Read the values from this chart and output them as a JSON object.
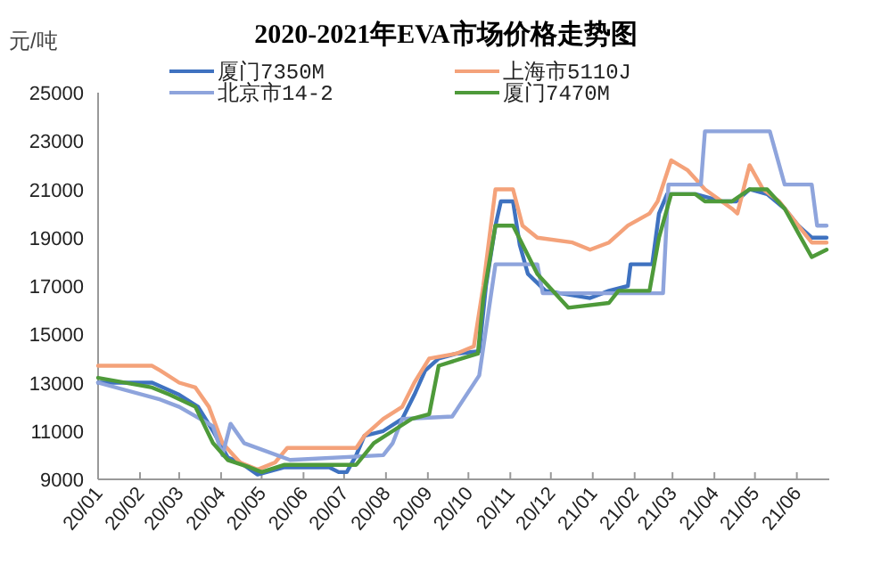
{
  "chart_data": {
    "type": "line",
    "title": "2020-2021年EVA市场价格走势图",
    "ylabel": "元/吨",
    "legend": "top",
    "grid": false,
    "line_style": "solid",
    "ylim": [
      9000,
      25000
    ],
    "yticks": [
      9000,
      11000,
      13000,
      15000,
      17000,
      19000,
      21000,
      23000,
      25000
    ],
    "xlim": [
      "2020-01-01",
      "2021-06-25"
    ],
    "xticks": [
      {
        "value": "2020-01",
        "label": "20/01"
      },
      {
        "value": "2020-02",
        "label": "20/02"
      },
      {
        "value": "2020-03",
        "label": "20/03"
      },
      {
        "value": "2020-04",
        "label": "20/04"
      },
      {
        "value": "2020-05",
        "label": "20/05"
      },
      {
        "value": "2020-06",
        "label": "20/06"
      },
      {
        "value": "2020-07",
        "label": "20/07"
      },
      {
        "value": "2020-08",
        "label": "20/08"
      },
      {
        "value": "2020-09",
        "label": "20/09"
      },
      {
        "value": "2020-10",
        "label": "20/10"
      },
      {
        "value": "2020-11",
        "label": "20/11"
      },
      {
        "value": "2020-12",
        "label": "20/12"
      },
      {
        "value": "2021-01",
        "label": "21/01"
      },
      {
        "value": "2021-02",
        "label": "21/02"
      },
      {
        "value": "2021-03",
        "label": "21/03"
      },
      {
        "value": "2021-04",
        "label": "21/04"
      },
      {
        "value": "2021-05",
        "label": "21/05"
      },
      {
        "value": "2021-06",
        "label": "21/06"
      }
    ],
    "series": [
      {
        "name": "厦门7350M",
        "color": "#3f72c0",
        "x": [
          "2020-01-01",
          "2020-02-10",
          "2020-03-01",
          "2020-03-15",
          "2020-03-26",
          "2020-04-06",
          "2020-04-15",
          "2020-04-28",
          "2020-05-18",
          "2020-06-20",
          "2020-06-27",
          "2020-07-03",
          "2020-07-10",
          "2020-07-16",
          "2020-07-30",
          "2020-08-13",
          "2020-08-22",
          "2020-08-30",
          "2020-09-09",
          "2020-09-22",
          "2020-10-09",
          "2020-10-14",
          "2020-10-21",
          "2020-10-25",
          "2020-11-03",
          "2020-11-08",
          "2020-11-14",
          "2020-11-27",
          "2020-12-30",
          "2021-01-13",
          "2021-01-27",
          "2021-01-29",
          "2021-02-14",
          "2021-02-19",
          "2021-02-25",
          "2021-03-18",
          "2021-04-07",
          "2021-04-17",
          "2021-04-27",
          "2021-05-10",
          "2021-05-23",
          "2021-06-02",
          "2021-06-12",
          "2021-06-23"
        ],
        "values": [
          13000,
          13000,
          12500,
          12000,
          11000,
          9900,
          9700,
          9200,
          9500,
          9500,
          9300,
          9300,
          10000,
          10800,
          11000,
          11500,
          12500,
          13500,
          14000,
          14200,
          14300,
          17000,
          19500,
          20500,
          20500,
          18700,
          17500,
          16800,
          16500,
          16800,
          17000,
          17900,
          17900,
          20000,
          20800,
          20800,
          20500,
          20500,
          21000,
          20800,
          20200,
          19500,
          19000,
          19000
        ]
      },
      {
        "name": "上海市5110J",
        "color": "#f4a27a",
        "x": [
          "2020-01-01",
          "2020-02-10",
          "2020-02-16",
          "2020-03-01",
          "2020-03-13",
          "2020-03-23",
          "2020-04-02",
          "2020-04-15",
          "2020-04-28",
          "2020-05-11",
          "2020-05-20",
          "2020-07-10",
          "2020-07-16",
          "2020-07-30",
          "2020-08-13",
          "2020-08-22",
          "2020-09-02",
          "2020-09-22",
          "2020-10-05",
          "2020-10-12",
          "2020-10-21",
          "2020-11-03",
          "2020-11-10",
          "2020-11-21",
          "2020-12-17",
          "2020-12-30",
          "2021-01-13",
          "2021-01-27",
          "2021-02-12",
          "2021-02-18",
          "2021-02-28",
          "2021-03-12",
          "2021-03-25",
          "2021-04-14",
          "2021-04-18",
          "2021-04-27",
          "2021-05-07",
          "2021-05-19",
          "2021-06-02",
          "2021-06-12",
          "2021-06-23"
        ],
        "values": [
          13700,
          13700,
          13500,
          13000,
          12800,
          12000,
          10500,
          9700,
          9400,
          9700,
          10300,
          10300,
          10800,
          11500,
          12000,
          13000,
          14000,
          14200,
          14500,
          17000,
          21000,
          21000,
          19500,
          19000,
          18800,
          18500,
          18800,
          19500,
          20000,
          20500,
          22200,
          21800,
          21000,
          20200,
          20000,
          22000,
          21000,
          20500,
          19500,
          18800,
          18800
        ]
      },
      {
        "name": "北京市14-2",
        "color": "#8ea4dc",
        "x": [
          "2020-01-01",
          "2020-02-16",
          "2020-03-01",
          "2020-03-26",
          "2020-04-02",
          "2020-04-08",
          "2020-04-18",
          "2020-05-22",
          "2020-07-30",
          "2020-08-06",
          "2020-08-13",
          "2020-09-19",
          "2020-10-09",
          "2020-10-21",
          "2020-11-21",
          "2020-11-25",
          "2021-02-22",
          "2021-02-26",
          "2021-03-22",
          "2021-03-25",
          "2021-05-12",
          "2021-05-23",
          "2021-06-12",
          "2021-06-16",
          "2021-06-23"
        ],
        "values": [
          13000,
          12300,
          12000,
          11200,
          10000,
          11300,
          10500,
          9800,
          10000,
          10500,
          11500,
          11600,
          13300,
          17900,
          17900,
          16700,
          16700,
          21200,
          21200,
          23400,
          23400,
          21200,
          21200,
          19500,
          19500
        ]
      },
      {
        "name": "厦门7470M",
        "color": "#4e9a3a",
        "x": [
          "2020-01-01",
          "2020-02-10",
          "2020-02-23",
          "2020-03-13",
          "2020-03-26",
          "2020-04-06",
          "2020-04-22",
          "2020-05-01",
          "2020-05-18",
          "2020-07-10",
          "2020-07-23",
          "2020-08-06",
          "2020-08-20",
          "2020-09-02",
          "2020-09-09",
          "2020-09-26",
          "2020-10-08",
          "2020-10-12",
          "2020-10-21",
          "2020-11-03",
          "2020-11-21",
          "2020-12-14",
          "2021-01-13",
          "2021-01-20",
          "2021-02-12",
          "2021-02-19",
          "2021-02-28",
          "2021-03-18",
          "2021-03-25",
          "2021-04-14",
          "2021-04-27",
          "2021-05-10",
          "2021-05-23",
          "2021-06-02",
          "2021-06-12",
          "2021-06-23"
        ],
        "values": [
          13200,
          12800,
          12500,
          12000,
          10500,
          9800,
          9500,
          9300,
          9600,
          9600,
          10500,
          11000,
          11500,
          11700,
          13700,
          14000,
          14200,
          16500,
          19500,
          19500,
          17500,
          16100,
          16300,
          16800,
          16800,
          19000,
          20800,
          20800,
          20500,
          20500,
          21000,
          21000,
          20200,
          19200,
          18200,
          18500
        ]
      }
    ]
  }
}
